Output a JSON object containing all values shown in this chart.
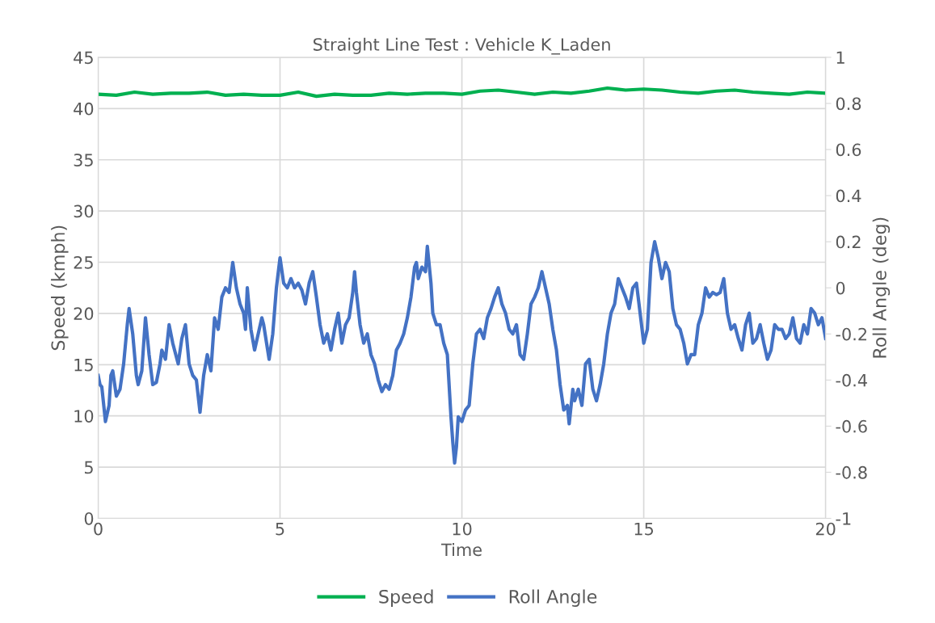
{
  "chart_data": {
    "type": "line",
    "title": "Straight Line Test : Vehicle K_Laden",
    "xlabel": "Time",
    "ylabel": "Speed (kmph)",
    "y2label": "Roll Angle (deg)",
    "xlim": [
      0,
      20
    ],
    "xticks": [
      0,
      5,
      10,
      15,
      20
    ],
    "ylim": [
      0,
      45
    ],
    "yticks": [
      0,
      5,
      10,
      15,
      20,
      25,
      30,
      35,
      40,
      45
    ],
    "y2lim": [
      -1,
      1
    ],
    "y2ticks": [
      -1,
      -0.8,
      -0.6,
      -0.4,
      -0.2,
      0,
      0.2,
      0.4,
      0.6,
      0.8,
      1
    ],
    "grid": true,
    "legend": "bottom",
    "marker": "none",
    "line_style": "solid",
    "series": [
      {
        "name": "Speed",
        "color": "#00b050",
        "x": [
          0,
          0.5,
          1,
          1.5,
          2,
          2.5,
          3,
          3.5,
          4,
          4.5,
          5,
          5.5,
          6,
          6.5,
          7,
          7.5,
          8,
          8.5,
          9,
          9.5,
          10,
          10.5,
          11,
          11.5,
          12,
          12.5,
          13,
          13.5,
          14,
          14.5,
          15,
          15.5,
          16,
          16.5,
          17,
          17.5,
          18,
          18.5,
          19,
          19.5,
          20
        ],
        "values": [
          41.4,
          41.3,
          41.6,
          41.4,
          41.5,
          41.5,
          41.6,
          41.3,
          41.4,
          41.3,
          41.3,
          41.6,
          41.2,
          41.4,
          41.3,
          41.3,
          41.5,
          41.4,
          41.5,
          41.5,
          41.4,
          41.7,
          41.8,
          41.6,
          41.4,
          41.6,
          41.5,
          41.7,
          42.0,
          41.8,
          41.9,
          41.8,
          41.6,
          41.5,
          41.7,
          41.8,
          41.6,
          41.5,
          41.4,
          41.6,
          41.5
        ]
      },
      {
        "name": "Roll Angle",
        "color": "#4472c4",
        "axis": "y2",
        "x": [
          0,
          0.05,
          0.1,
          0.2,
          0.3,
          0.35,
          0.4,
          0.5,
          0.6,
          0.7,
          0.8,
          0.85,
          0.95,
          1.05,
          1.1,
          1.2,
          1.3,
          1.4,
          1.5,
          1.6,
          1.7,
          1.75,
          1.85,
          1.95,
          2.05,
          2.2,
          2.3,
          2.4,
          2.5,
          2.6,
          2.7,
          2.8,
          2.9,
          3.0,
          3.1,
          3.2,
          3.3,
          3.4,
          3.5,
          3.6,
          3.7,
          3.8,
          3.9,
          4.0,
          4.05,
          4.1,
          4.2,
          4.3,
          4.4,
          4.5,
          4.55,
          4.7,
          4.8,
          4.9,
          5.0,
          5.1,
          5.2,
          5.3,
          5.4,
          5.5,
          5.6,
          5.7,
          5.8,
          5.9,
          6.0,
          6.1,
          6.2,
          6.3,
          6.4,
          6.5,
          6.6,
          6.7,
          6.8,
          6.9,
          7.0,
          7.05,
          7.1,
          7.2,
          7.3,
          7.4,
          7.5,
          7.6,
          7.7,
          7.8,
          7.9,
          8.0,
          8.1,
          8.2,
          8.3,
          8.4,
          8.5,
          8.6,
          8.7,
          8.75,
          8.8,
          8.9,
          9.0,
          9.05,
          9.15,
          9.2,
          9.3,
          9.4,
          9.5,
          9.6,
          9.7,
          9.75,
          9.8,
          9.85,
          9.9,
          10.0,
          10.1,
          10.2,
          10.3,
          10.4,
          10.5,
          10.6,
          10.7,
          10.8,
          10.9,
          11.0,
          11.1,
          11.2,
          11.3,
          11.4,
          11.5,
          11.6,
          11.7,
          11.8,
          11.9,
          12.0,
          12.1,
          12.2,
          12.3,
          12.4,
          12.5,
          12.6,
          12.7,
          12.8,
          12.9,
          12.95,
          13.05,
          13.1,
          13.2,
          13.3,
          13.4,
          13.5,
          13.6,
          13.7,
          13.8,
          13.9,
          14.0,
          14.1,
          14.2,
          14.3,
          14.4,
          14.5,
          14.6,
          14.7,
          14.8,
          14.9,
          15.0,
          15.1,
          15.2,
          15.3,
          15.4,
          15.5,
          15.6,
          15.7,
          15.8,
          15.9,
          16.0,
          16.1,
          16.2,
          16.3,
          16.4,
          16.5,
          16.6,
          16.7,
          16.8,
          16.9,
          17.0,
          17.1,
          17.2,
          17.3,
          17.4,
          17.5,
          17.6,
          17.7,
          17.8,
          17.9,
          18.0,
          18.1,
          18.2,
          18.3,
          18.4,
          18.5,
          18.6,
          18.7,
          18.8,
          18.9,
          19.0,
          19.1,
          19.2,
          19.3,
          19.4,
          19.5,
          19.6,
          19.7,
          19.8,
          19.9,
          20.0
        ],
        "values": [
          -0.38,
          -0.42,
          -0.43,
          -0.58,
          -0.51,
          -0.38,
          -0.36,
          -0.47,
          -0.44,
          -0.33,
          -0.16,
          -0.09,
          -0.2,
          -0.38,
          -0.42,
          -0.36,
          -0.13,
          -0.29,
          -0.42,
          -0.41,
          -0.33,
          -0.27,
          -0.31,
          -0.16,
          -0.24,
          -0.33,
          -0.22,
          -0.16,
          -0.33,
          -0.38,
          -0.4,
          -0.54,
          -0.38,
          -0.29,
          -0.36,
          -0.13,
          -0.18,
          -0.04,
          0,
          -0.02,
          0.11,
          0,
          -0.07,
          -0.11,
          -0.18,
          0,
          -0.18,
          -0.27,
          -0.2,
          -0.13,
          -0.16,
          -0.31,
          -0.2,
          0,
          0.13,
          0.02,
          0,
          0.04,
          0,
          0.02,
          -0.01,
          -0.07,
          0.02,
          0.07,
          -0.04,
          -0.16,
          -0.24,
          -0.2,
          -0.27,
          -0.18,
          -0.11,
          -0.24,
          -0.16,
          -0.13,
          -0.02,
          0.07,
          -0.02,
          -0.16,
          -0.24,
          -0.2,
          -0.29,
          -0.33,
          -0.4,
          -0.45,
          -0.42,
          -0.44,
          -0.38,
          -0.27,
          -0.24,
          -0.2,
          -0.13,
          -0.04,
          0.09,
          0.11,
          0.04,
          0.09,
          0.07,
          0.18,
          0.02,
          -0.11,
          -0.16,
          -0.16,
          -0.24,
          -0.29,
          -0.56,
          -0.67,
          -0.76,
          -0.69,
          -0.56,
          -0.58,
          -0.53,
          -0.51,
          -0.33,
          -0.2,
          -0.18,
          -0.22,
          -0.13,
          -0.09,
          -0.04,
          0,
          -0.07,
          -0.11,
          -0.18,
          -0.2,
          -0.16,
          -0.29,
          -0.31,
          -0.2,
          -0.07,
          -0.04,
          0,
          0.07,
          0,
          -0.07,
          -0.18,
          -0.27,
          -0.42,
          -0.53,
          -0.51,
          -0.59,
          -0.44,
          -0.49,
          -0.44,
          -0.51,
          -0.33,
          -0.31,
          -0.44,
          -0.49,
          -0.42,
          -0.33,
          -0.2,
          -0.11,
          -0.07,
          0.04,
          0,
          -0.04,
          -0.09,
          0,
          0.02,
          -0.11,
          -0.24,
          -0.18,
          0.11,
          0.2,
          0.13,
          0.04,
          0.11,
          0.07,
          -0.09,
          -0.16,
          -0.18,
          -0.24,
          -0.33,
          -0.29,
          -0.29,
          -0.16,
          -0.11,
          0,
          -0.04,
          -0.02,
          -0.03,
          -0.02,
          0.04,
          -0.11,
          -0.18,
          -0.16,
          -0.22,
          -0.27,
          -0.16,
          -0.11,
          -0.24,
          -0.22,
          -0.16,
          -0.24,
          -0.31,
          -0.27,
          -0.16,
          -0.18,
          -0.18,
          -0.22,
          -0.2,
          -0.13,
          -0.22,
          -0.24,
          -0.16,
          -0.2,
          -0.09,
          -0.11,
          -0.16,
          -0.13,
          -0.22
        ]
      }
    ]
  }
}
